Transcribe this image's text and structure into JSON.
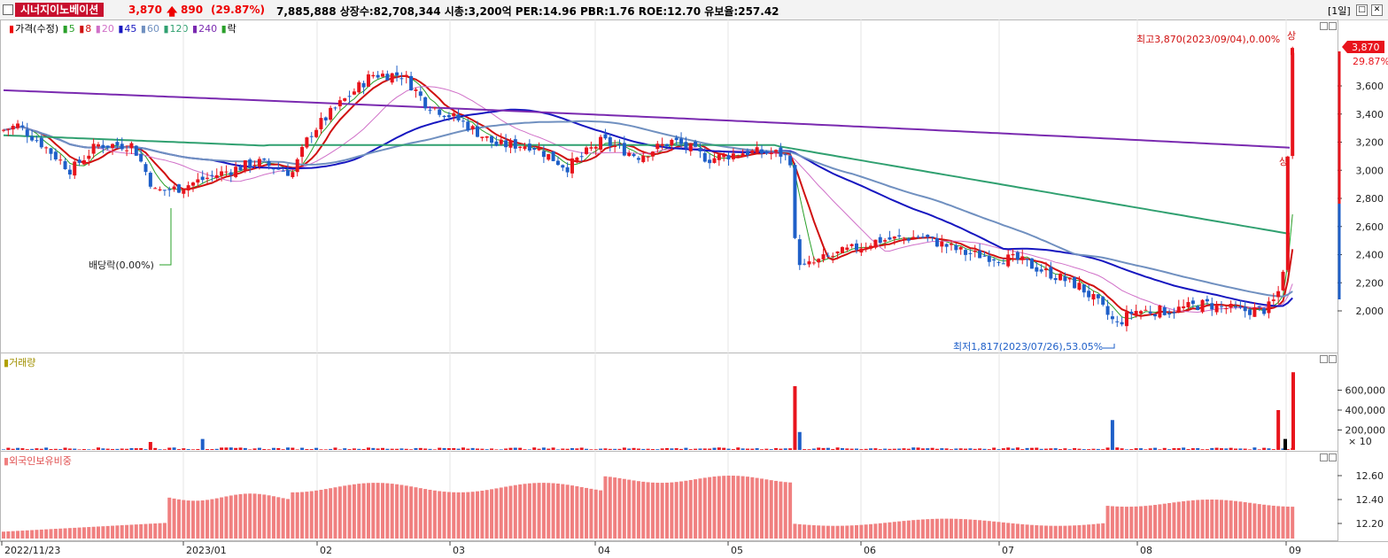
{
  "header": {
    "stock_name": "시너지이노베이션",
    "price": "3,870",
    "change": "890",
    "change_pct": "(29.87%)",
    "info": "7,885,888  상장수:82,708,344 시총:3,200억 PER:14.96 PBR:1.76 ROE:12.70 유보율:257.42",
    "period": "[1일]",
    "btn_restore": "□",
    "btn_close": "✕"
  },
  "price_panel": {
    "legend": {
      "price": "가격(수정)",
      "ma5": "5",
      "ma8": "8",
      "ma20": "20",
      "ma45": "45",
      "ma60": "60",
      "ma120": "120",
      "ma240": "240",
      "fall": "락"
    },
    "high_annotation": "최고3,870(2023/09/04),0.00%",
    "low_annotation": "최저1,817(2023/07/26),53.05%",
    "dividend_annotation": "배당락(0.00%)",
    "upper_limit_label": "상",
    "price_tag": "3,870",
    "pct_tag": "29.87%",
    "y_ticks": [
      "3,600",
      "3,400",
      "3,200",
      "3,000",
      "2,800",
      "2,600",
      "2,400",
      "2,200",
      "2,000"
    ]
  },
  "volume_panel": {
    "title": "거래량",
    "y_ticks": [
      "600,000",
      "400,000",
      "200,000"
    ],
    "multiplier": "× 10"
  },
  "foreign_panel": {
    "title": "외국인보유비중",
    "y_ticks": [
      "12.60",
      "12.40",
      "12.20"
    ]
  },
  "x_axis": [
    "2022/11/23",
    "2023/01",
    "02",
    "03",
    "04",
    "05",
    "06",
    "07",
    "08",
    "09"
  ],
  "colors": {
    "up": "#e8141c",
    "down": "#1e5fc8",
    "ma5": "#2aa02a",
    "ma8": "#d01010",
    "ma20": "#d070c8",
    "ma45": "#1616c0",
    "ma60": "#7090c0",
    "ma120": "#30a070",
    "ma240": "#7a2ab0",
    "foreign_bar": "#f08080"
  },
  "chart_data": [
    {
      "type": "candlestick",
      "title": "가격(수정)",
      "y_range": [
        1817,
        3870
      ],
      "high": {
        "value": 3870,
        "date": "2023/09/04"
      },
      "low": {
        "value": 1817,
        "date": "2023/07/26"
      },
      "last_close": 3870
    },
    {
      "type": "bar",
      "title": "거래량",
      "y_range": [
        0,
        800000
      ]
    },
    {
      "type": "bar",
      "title": "외국인보유비중",
      "y_range": [
        12.1,
        12.7
      ]
    }
  ]
}
